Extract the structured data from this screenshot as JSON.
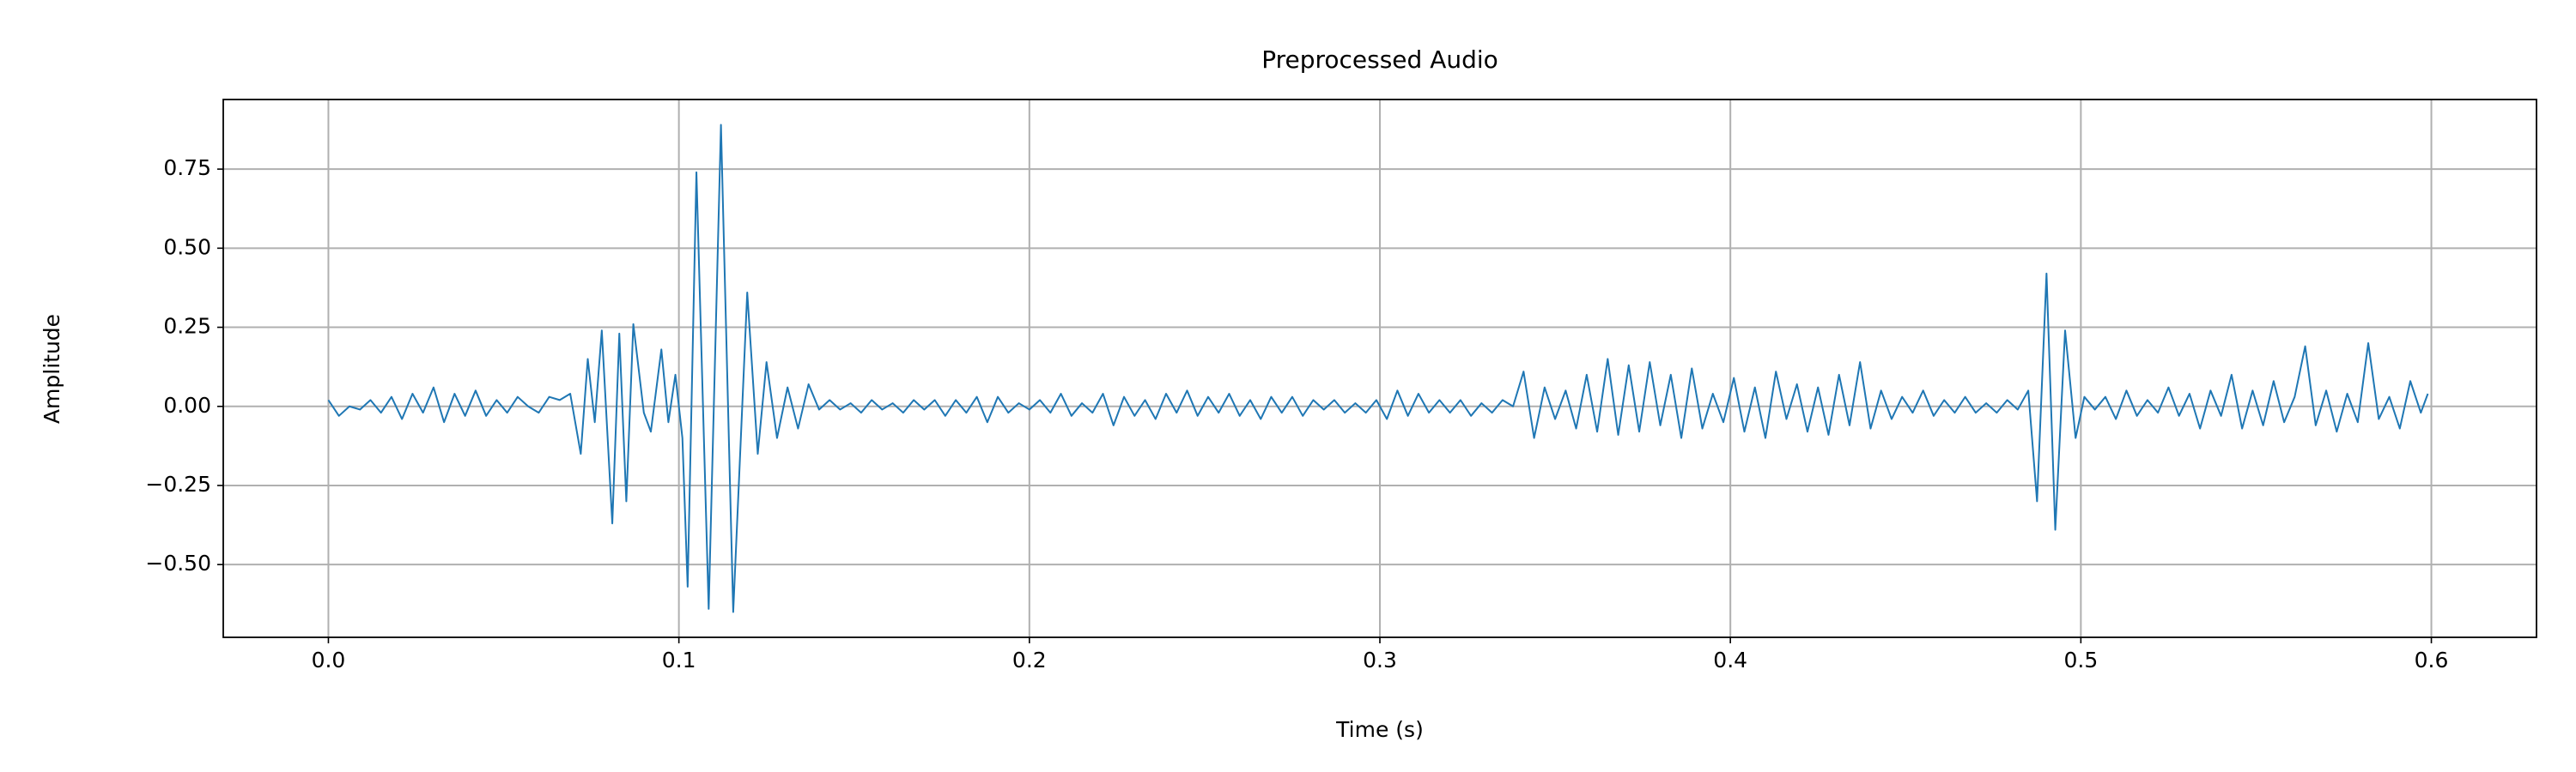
{
  "chart_data": {
    "type": "line",
    "title": "Preprocessed Audio",
    "xlabel": "Time (s)",
    "ylabel": "Amplitude",
    "color": "#1f77b4",
    "grid": true,
    "xlim": [
      -0.03,
      0.63
    ],
    "ylim": [
      -0.73,
      0.97
    ],
    "xticks": [
      {
        "value": 0,
        "label": "0.0"
      },
      0.1,
      0.2,
      0.3,
      0.4,
      0.5,
      0.6
    ],
    "yticks": [
      {
        "value": -0.5,
        "label": "−0.50"
      },
      {
        "value": -0.25,
        "label": "−0.25"
      },
      {
        "value": 0,
        "label": "0.00"
      },
      0.25,
      {
        "value": 0.5,
        "label": "0.50"
      },
      0.75
    ],
    "x": [
      0.0,
      0.003,
      0.006,
      0.009,
      0.012,
      0.015,
      0.018,
      0.021,
      0.024,
      0.027,
      0.03,
      0.033,
      0.036,
      0.039,
      0.042,
      0.045,
      0.048,
      0.051,
      0.054,
      0.057,
      0.06,
      0.063,
      0.066,
      0.069,
      0.072,
      0.074,
      0.076,
      0.078,
      0.081,
      0.083,
      0.085,
      0.087,
      0.09,
      0.092,
      0.095,
      0.097,
      0.099,
      0.101,
      0.1025,
      0.105,
      0.1085,
      0.112,
      0.1155,
      0.1195,
      0.1225,
      0.125,
      0.128,
      0.131,
      0.134,
      0.137,
      0.14,
      0.143,
      0.146,
      0.149,
      0.152,
      0.155,
      0.158,
      0.161,
      0.164,
      0.167,
      0.17,
      0.173,
      0.176,
      0.179,
      0.182,
      0.185,
      0.188,
      0.191,
      0.194,
      0.197,
      0.2,
      0.203,
      0.206,
      0.209,
      0.212,
      0.215,
      0.218,
      0.221,
      0.224,
      0.227,
      0.23,
      0.233,
      0.236,
      0.239,
      0.242,
      0.245,
      0.248,
      0.251,
      0.254,
      0.257,
      0.26,
      0.263,
      0.266,
      0.269,
      0.272,
      0.275,
      0.278,
      0.281,
      0.284,
      0.287,
      0.29,
      0.293,
      0.296,
      0.299,
      0.302,
      0.305,
      0.308,
      0.311,
      0.314,
      0.317,
      0.32,
      0.323,
      0.326,
      0.329,
      0.332,
      0.335,
      0.338,
      0.341,
      0.344,
      0.347,
      0.35,
      0.353,
      0.356,
      0.359,
      0.362,
      0.365,
      0.368,
      0.371,
      0.374,
      0.377,
      0.38,
      0.383,
      0.386,
      0.389,
      0.392,
      0.395,
      0.398,
      0.401,
      0.404,
      0.407,
      0.41,
      0.413,
      0.416,
      0.419,
      0.422,
      0.425,
      0.428,
      0.431,
      0.434,
      0.437,
      0.44,
      0.443,
      0.446,
      0.449,
      0.452,
      0.455,
      0.458,
      0.461,
      0.464,
      0.467,
      0.47,
      0.473,
      0.476,
      0.479,
      0.482,
      0.485,
      0.4875,
      0.4902,
      0.4927,
      0.4955,
      0.4985,
      0.501,
      0.504,
      0.507,
      0.51,
      0.513,
      0.516,
      0.519,
      0.522,
      0.525,
      0.528,
      0.531,
      0.534,
      0.537,
      0.54,
      0.543,
      0.546,
      0.549,
      0.552,
      0.555,
      0.558,
      0.561,
      0.564,
      0.567,
      0.57,
      0.573,
      0.576,
      0.579,
      0.582,
      0.585,
      0.588,
      0.591,
      0.594,
      0.597,
      0.599
    ],
    "values": [
      0.02,
      -0.03,
      0.0,
      -0.01,
      0.02,
      -0.02,
      0.03,
      -0.04,
      0.04,
      -0.02,
      0.06,
      -0.05,
      0.04,
      -0.03,
      0.05,
      -0.03,
      0.02,
      -0.02,
      0.03,
      0.0,
      -0.02,
      0.03,
      0.02,
      0.04,
      -0.15,
      0.15,
      -0.05,
      0.24,
      -0.37,
      0.23,
      -0.3,
      0.26,
      -0.02,
      -0.08,
      0.18,
      -0.05,
      0.1,
      -0.1,
      -0.57,
      0.74,
      -0.64,
      0.89,
      -0.65,
      0.36,
      -0.15,
      0.14,
      -0.1,
      0.06,
      -0.07,
      0.07,
      -0.01,
      0.02,
      -0.01,
      0.01,
      -0.02,
      0.02,
      -0.01,
      0.01,
      -0.02,
      0.02,
      -0.01,
      0.02,
      -0.03,
      0.02,
      -0.02,
      0.03,
      -0.05,
      0.03,
      -0.02,
      0.01,
      -0.01,
      0.02,
      -0.02,
      0.04,
      -0.03,
      0.01,
      -0.02,
      0.04,
      -0.06,
      0.03,
      -0.03,
      0.02,
      -0.04,
      0.04,
      -0.02,
      0.05,
      -0.03,
      0.03,
      -0.02,
      0.04,
      -0.03,
      0.02,
      -0.04,
      0.03,
      -0.02,
      0.03,
      -0.03,
      0.02,
      -0.01,
      0.02,
      -0.02,
      0.01,
      -0.02,
      0.02,
      -0.04,
      0.05,
      -0.03,
      0.04,
      -0.02,
      0.02,
      -0.02,
      0.02,
      -0.03,
      0.01,
      -0.02,
      0.02,
      0.0,
      0.11,
      -0.1,
      0.06,
      -0.04,
      0.05,
      -0.07,
      0.1,
      -0.08,
      0.15,
      -0.09,
      0.13,
      -0.08,
      0.14,
      -0.06,
      0.1,
      -0.1,
      0.12,
      -0.07,
      0.04,
      -0.05,
      0.09,
      -0.08,
      0.06,
      -0.1,
      0.11,
      -0.04,
      0.07,
      -0.08,
      0.06,
      -0.09,
      0.1,
      -0.06,
      0.14,
      -0.07,
      0.05,
      -0.04,
      0.03,
      -0.02,
      0.05,
      -0.03,
      0.02,
      -0.02,
      0.03,
      -0.02,
      0.01,
      -0.02,
      0.02,
      -0.01,
      0.05,
      -0.3,
      0.42,
      -0.39,
      0.24,
      -0.1,
      0.03,
      -0.01,
      0.03,
      -0.04,
      0.05,
      -0.03,
      0.02,
      -0.02,
      0.06,
      -0.03,
      0.04,
      -0.07,
      0.05,
      -0.03,
      0.1,
      -0.07,
      0.05,
      -0.06,
      0.08,
      -0.05,
      0.03,
      0.19,
      -0.06,
      0.05,
      -0.08,
      0.04,
      -0.05,
      0.2,
      -0.04,
      0.03,
      -0.07,
      0.08,
      -0.02,
      0.04
    ]
  }
}
